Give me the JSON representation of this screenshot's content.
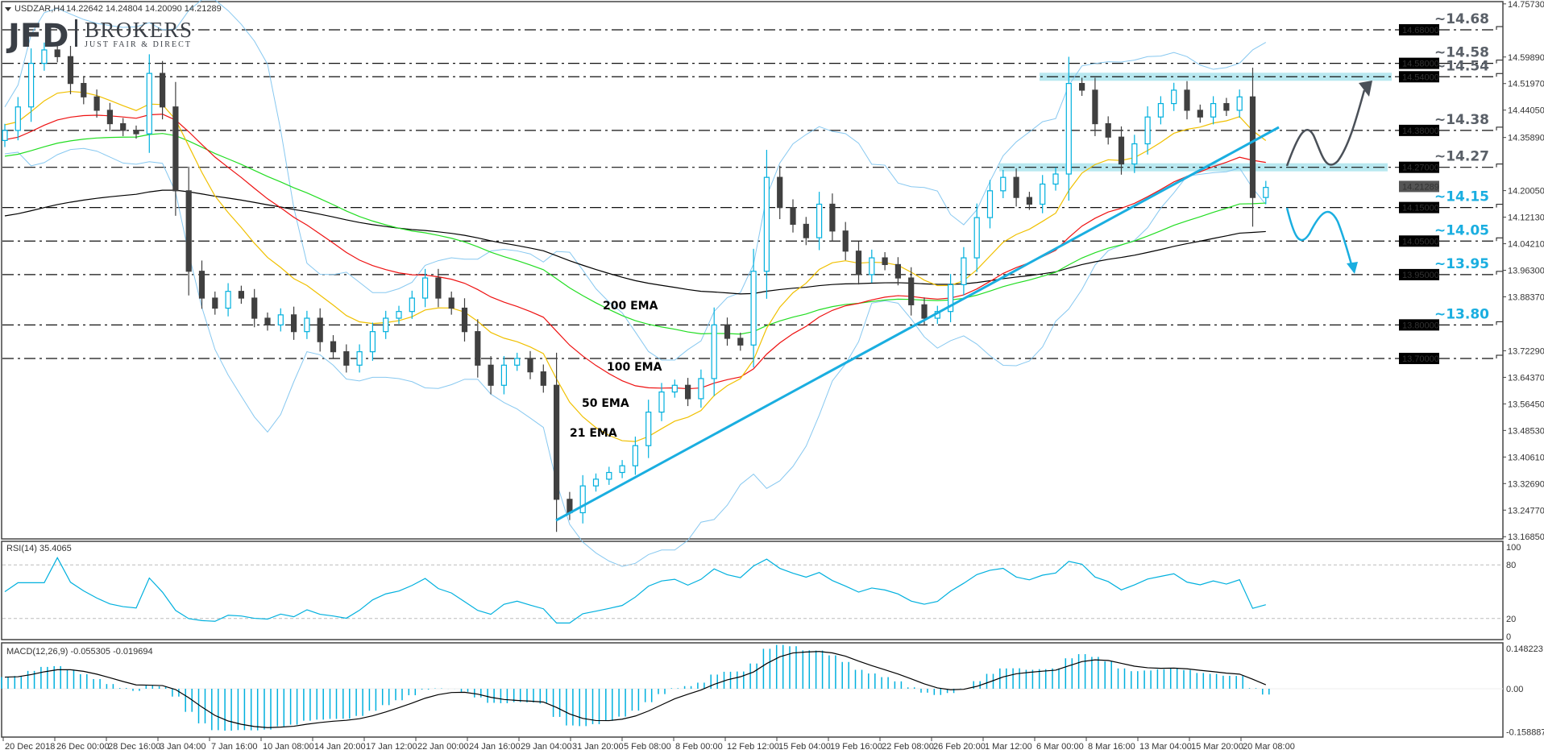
{
  "header": {
    "symbol": "USDZAR,H4",
    "ohlc": "14.22642 14.24804 14.20090 14.21289"
  },
  "logo": {
    "main": "JFD",
    "brand": "BROKERS",
    "tagline": "JUST FAIR & DIRECT"
  },
  "colors": {
    "bull": "#00b0de",
    "bear": "#404040",
    "bands": "#87c8f0",
    "trendline": "#1aaee0",
    "zone": "#b8e8f0",
    "up_scenario": "#4a5058",
    "down_scenario": "#1aaee0"
  },
  "chart_data": {
    "type": "candlestick",
    "symbol": "USDZAR",
    "timeframe": "H4",
    "current_price": "14.21289",
    "ylim": [
      13.1685,
      14.7573
    ],
    "x_tick_labels": [
      "20 Dec 2018",
      "26 Dec 00:00",
      "28 Dec 16:00",
      "3 Jan 04:00",
      "7 Jan 16:00",
      "10 Jan 08:00",
      "14 Jan 20:00",
      "17 Jan 12:00",
      "22 Jan 00:00",
      "24 Jan 16:00",
      "29 Jan 04:00",
      "31 Jan 20:00",
      "5 Feb 08:00",
      "8 Feb 00:00",
      "12 Feb 12:00",
      "15 Feb 04:00",
      "19 Feb 16:00",
      "22 Feb 08:00",
      "26 Feb 20:00",
      "1 Mar 12:00",
      "6 Mar 00:00",
      "8 Mar 16:00",
      "13 Mar 04:00",
      "15 Mar 20:00",
      "20 Mar 08:00"
    ],
    "price_axis_ticks": [
      "14.75730",
      "14.59890",
      "14.51970",
      "14.44050",
      "14.35890",
      "14.20050",
      "14.12130",
      "14.04210",
      "13.96300",
      "13.88370",
      "13.72290",
      "13.64370",
      "13.56450",
      "13.48530",
      "13.40610",
      "13.32690",
      "13.24770",
      "13.16850"
    ],
    "closes": [
      14.38,
      14.45,
      14.58,
      14.62,
      14.6,
      14.52,
      14.48,
      14.44,
      14.4,
      14.38,
      14.37,
      14.55,
      14.45,
      14.2,
      13.96,
      13.88,
      13.85,
      13.9,
      13.88,
      13.82,
      13.8,
      13.83,
      13.78,
      13.82,
      13.75,
      13.72,
      13.68,
      13.72,
      13.78,
      13.82,
      13.84,
      13.88,
      13.94,
      13.88,
      13.85,
      13.78,
      13.68,
      13.62,
      13.68,
      13.7,
      13.66,
      13.62,
      13.28,
      13.24,
      13.32,
      13.34,
      13.36,
      13.38,
      13.44,
      13.54,
      13.6,
      13.62,
      13.58,
      13.64,
      13.8,
      13.76,
      13.74,
      13.96,
      14.24,
      14.15,
      14.1,
      14.06,
      14.16,
      14.08,
      14.02,
      13.95,
      14.0,
      13.98,
      13.94,
      13.86,
      13.82,
      13.84,
      13.92,
      14.0,
      14.12,
      14.2,
      14.24,
      14.18,
      14.16,
      14.22,
      14.25,
      14.52,
      14.5,
      14.4,
      14.36,
      14.28,
      14.34,
      14.42,
      14.46,
      14.5,
      14.44,
      14.42,
      14.46,
      14.44,
      14.48,
      14.18,
      14.21
    ],
    "levels": [
      {
        "value": 14.68,
        "label": "~14.68",
        "axis": "14.68000",
        "color": "#5a6068"
      },
      {
        "value": 14.58,
        "label": "~14.58",
        "axis": "14.58000",
        "color": "#5a6068"
      },
      {
        "value": 14.54,
        "label": "~14.54",
        "axis": "14.54000",
        "color": "#5a6068"
      },
      {
        "value": 14.38,
        "label": "~14.38",
        "axis": "14.38000",
        "color": "#5a6068"
      },
      {
        "value": 14.27,
        "label": "~14.27",
        "axis": "14.27000",
        "color": "#5a6068"
      },
      {
        "value": 14.15,
        "label": "~14.15",
        "axis": "14.15000",
        "color": "#1aaee0"
      },
      {
        "value": 14.05,
        "label": "~14.05",
        "axis": "14.05000",
        "color": "#1aaee0"
      },
      {
        "value": 13.95,
        "label": "~13.95",
        "axis": "13.95000",
        "color": "#1aaee0"
      },
      {
        "value": 13.8,
        "label": "~13.80",
        "axis": "13.80000",
        "color": "#1aaee0"
      },
      {
        "value": 13.7,
        "label": "",
        "axis": "13.70000",
        "color": "#1aaee0"
      }
    ],
    "zones": [
      14.54,
      14.27
    ],
    "ema_labels": [
      {
        "text": "200 EMA",
        "period": 200,
        "color": "#000000"
      },
      {
        "text": "100 EMA",
        "period": 100,
        "color": "#22dd22"
      },
      {
        "text": "50 EMA",
        "period": 50,
        "color": "#ee1111"
      },
      {
        "text": "21 EMA",
        "period": 21,
        "color": "#f0c000"
      }
    ],
    "rsi": {
      "label": "RSI(14) 35.4065",
      "levels": [
        80,
        20
      ],
      "axis": [
        "100",
        "80",
        "20",
        "0"
      ],
      "color": "#00b0de"
    },
    "macd": {
      "label": "MACD(12,26,9) -0.055305 -0.019694",
      "axis": [
        "0.148223",
        "0.00",
        "-0.158887"
      ],
      "ylim": [
        -0.158887,
        0.148223
      ]
    }
  }
}
